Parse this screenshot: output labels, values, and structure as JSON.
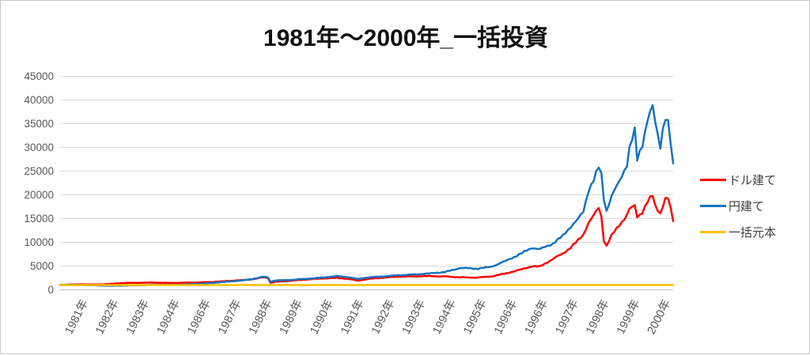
{
  "chart_data": {
    "type": "line",
    "title": "1981年～2000年_一括投資",
    "legend_position": "right",
    "grid": true,
    "x_axis": {
      "labels": [
        "1981年",
        "1982年",
        "1983年",
        "1984年",
        "1986年",
        "1987年",
        "1988年",
        "1989年",
        "1990年",
        "1991年",
        "1992年",
        "1993年",
        "1994年",
        "1995年",
        "1996年",
        "1996年",
        "1997年",
        "1998年",
        "1999年",
        "2000年"
      ],
      "x_unit": "month index, 0 = 1981-01, 239 = 2000-12"
    },
    "y_axis": {
      "min": 0,
      "max": 45000,
      "step": 5000,
      "ticks": [
        0,
        5000,
        10000,
        15000,
        20000,
        25000,
        30000,
        35000,
        40000,
        45000
      ]
    },
    "colors": {
      "title": "#111111",
      "axis_labels": "#595959",
      "grid": "#D9D9D9",
      "axis_line": "#BFBFBF",
      "legend_text": "#404040",
      "border": "#C9C9C9"
    },
    "series": [
      {
        "name": "ドル建て",
        "color": "#FF0000",
        "smooth": false,
        "points": [
          [
            0,
            1000
          ],
          [
            4,
            1120
          ],
          [
            8,
            1150
          ],
          [
            12,
            1100
          ],
          [
            16,
            1150
          ],
          [
            20,
            1250
          ],
          [
            24,
            1400
          ],
          [
            30,
            1450
          ],
          [
            36,
            1500
          ],
          [
            42,
            1450
          ],
          [
            48,
            1500
          ],
          [
            54,
            1550
          ],
          [
            60,
            1650
          ],
          [
            66,
            1850
          ],
          [
            72,
            2050
          ],
          [
            76,
            2300
          ],
          [
            79,
            2650
          ],
          [
            81,
            2550
          ],
          [
            82,
            1500
          ],
          [
            84,
            1700
          ],
          [
            90,
            1900
          ],
          [
            96,
            2150
          ],
          [
            102,
            2350
          ],
          [
            108,
            2500
          ],
          [
            112,
            2350
          ],
          [
            116,
            1950
          ],
          [
            120,
            2300
          ],
          [
            126,
            2550
          ],
          [
            132,
            2750
          ],
          [
            138,
            2800
          ],
          [
            144,
            2900
          ],
          [
            150,
            2850
          ],
          [
            156,
            2650
          ],
          [
            162,
            2550
          ],
          [
            168,
            2750
          ],
          [
            174,
            3450
          ],
          [
            180,
            4350
          ],
          [
            184,
            5050
          ],
          [
            187,
            4950
          ],
          [
            192,
            6500
          ],
          [
            196,
            7600
          ],
          [
            199,
            8800
          ],
          [
            202,
            10300
          ],
          [
            204,
            11500
          ],
          [
            206,
            14000
          ],
          [
            208,
            15500
          ],
          [
            210,
            17200
          ],
          [
            211,
            15500
          ],
          [
            212,
            10500
          ],
          [
            213,
            9300
          ],
          [
            215,
            11500
          ],
          [
            218,
            13800
          ],
          [
            221,
            16000
          ],
          [
            222,
            17200
          ],
          [
            224,
            17800
          ],
          [
            225,
            15500
          ],
          [
            227,
            16500
          ],
          [
            229,
            18500
          ],
          [
            231,
            19700
          ],
          [
            232,
            17500
          ],
          [
            233,
            16800
          ],
          [
            234,
            16000
          ],
          [
            235,
            17500
          ],
          [
            236,
            19000
          ],
          [
            237,
            18800
          ],
          [
            238,
            17000
          ],
          [
            239,
            14200
          ]
        ]
      },
      {
        "name": "円建て",
        "color": "#1673C0",
        "smooth": false,
        "points": [
          [
            0,
            1000
          ],
          [
            4,
            1060
          ],
          [
            8,
            1020
          ],
          [
            12,
            960
          ],
          [
            16,
            880
          ],
          [
            20,
            850
          ],
          [
            24,
            900
          ],
          [
            30,
            960
          ],
          [
            36,
            1050
          ],
          [
            42,
            1030
          ],
          [
            48,
            1080
          ],
          [
            54,
            1250
          ],
          [
            60,
            1500
          ],
          [
            66,
            1750
          ],
          [
            72,
            2000
          ],
          [
            76,
            2350
          ],
          [
            79,
            2700
          ],
          [
            81,
            2600
          ],
          [
            82,
            1700
          ],
          [
            84,
            1950
          ],
          [
            90,
            2100
          ],
          [
            96,
            2350
          ],
          [
            102,
            2550
          ],
          [
            108,
            2850
          ],
          [
            112,
            2650
          ],
          [
            116,
            2250
          ],
          [
            120,
            2600
          ],
          [
            126,
            2850
          ],
          [
            132,
            3100
          ],
          [
            138,
            3200
          ],
          [
            144,
            3400
          ],
          [
            150,
            3700
          ],
          [
            154,
            4300
          ],
          [
            156,
            4650
          ],
          [
            162,
            4500
          ],
          [
            168,
            4850
          ],
          [
            174,
            6100
          ],
          [
            180,
            7600
          ],
          [
            184,
            8800
          ],
          [
            187,
            8500
          ],
          [
            192,
            9800
          ],
          [
            196,
            11500
          ],
          [
            199,
            13500
          ],
          [
            202,
            15000
          ],
          [
            204,
            16500
          ],
          [
            206,
            21000
          ],
          [
            208,
            23000
          ],
          [
            210,
            25500
          ],
          [
            211,
            24000
          ],
          [
            212,
            19000
          ],
          [
            213,
            16500
          ],
          [
            215,
            19500
          ],
          [
            218,
            22500
          ],
          [
            221,
            26500
          ],
          [
            222,
            30000
          ],
          [
            224,
            33500
          ],
          [
            225,
            27500
          ],
          [
            227,
            31000
          ],
          [
            229,
            36500
          ],
          [
            231,
            39000
          ],
          [
            232,
            35500
          ],
          [
            233,
            33000
          ],
          [
            234,
            30500
          ],
          [
            235,
            34500
          ],
          [
            236,
            36800
          ],
          [
            237,
            35500
          ],
          [
            238,
            31000
          ],
          [
            239,
            26000
          ]
        ]
      },
      {
        "name": "一括元本",
        "color": "#FFC000",
        "smooth": true,
        "points": [
          [
            0,
            1000
          ],
          [
            239,
            1000
          ]
        ]
      }
    ]
  }
}
